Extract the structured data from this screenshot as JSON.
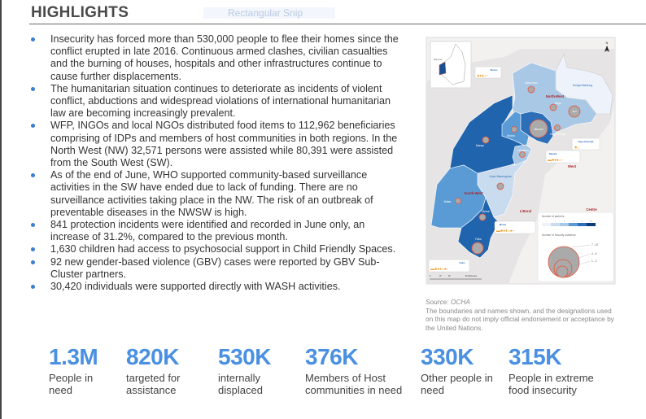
{
  "title": "HIGHLIGHTS",
  "bullets": [
    "Insecurity has forced more than 530,000 people to flee their homes since the conflict erupted in late 2016. Continuous armed clashes, civilian casualties and the burning of houses, hospitals and other infrastructures continue to cause further displacements.",
    "The humanitarian situation continues to deteriorate as incidents of violent conflict, abductions and widespread violations of international humanitarian law are becoming increasingly prevalent.",
    "WFP, INGOs and local NGOs distributed food items to 112,962 beneficiaries comprising of IDPs and members of host communities in both regions. In the North West (NW) 32,571 persons were assisted while 80,391 were assisted from the South West (SW).",
    "As of the end of June, WHO supported community-based surveillance activities in the SW have ended due to lack of funding. There are no surveillance activities taking place in the NW. The risk of an outbreak of preventable diseases in the NWSW is high.",
    "841 protection incidents were identified and recorded in June only, an increase of 31.2%, compared to the previous month.",
    "1,630 children had access to psychosocial support in Child Friendly Spaces.",
    "92 new gender-based violence (GBV) cases were reported by GBV Sub-Cluster partners.",
    "30,420 individuals were supported directly with WASH activities."
  ],
  "overlay_tooltip": "Rectangular Snip",
  "map": {
    "regions": {
      "nw": "North-West",
      "sw": "South-West",
      "west": "West",
      "littoral": "Littoral",
      "centre": "Centre"
    },
    "divisions": [
      "Menchum",
      "Donga-Mantung",
      "Boyo",
      "Bui",
      "Mezam",
      "Ngo-Ketunjia",
      "Momo",
      "Manyu",
      "Lebialem",
      "Kupe-Manenguba",
      "Ndian",
      "Meme",
      "Fako"
    ],
    "callouts": [
      "Momo",
      "Ngo-Ketunjia",
      "Mezam",
      "Meme",
      "Fako"
    ],
    "north_label": "N",
    "inset_label": "Map area",
    "scale_labels": [
      "0",
      "15",
      "30",
      "60 Kilometers"
    ],
    "legend": {
      "partners_title": "Number of partners",
      "partners_classes": [
        "1",
        "2",
        "3",
        "4",
        "5",
        "10+"
      ],
      "partners_colors": [
        "#eef3fb",
        "#c9dcef",
        "#a8c8e6",
        "#5b9bd5",
        "#2c6fb8",
        "#0d3c7a"
      ],
      "incidents_title": "Number of Security Incidence",
      "incidents_classes": [
        "7 - 10",
        "4 - 6",
        "1 - 3"
      ]
    },
    "colors": {
      "circle_fill": "#aaaaaa",
      "circle_stroke": "#e8533a",
      "icon": "#f0a23a",
      "region_label": "#a8222a",
      "division_label": "#2f6fb7"
    }
  },
  "source": {
    "label": "Source: OCHA",
    "disclaimer": "The boundaries and names shown, and the designations used on this map do not imply official endorsement or acceptance by the United Nations."
  },
  "stats": [
    {
      "value": "1.3M",
      "label": "People in need"
    },
    {
      "value": "820K",
      "label": "targeted for assistance"
    },
    {
      "value": "530K",
      "label": "internally displaced"
    },
    {
      "value": "376K",
      "label": "Members of Host communities in need"
    },
    {
      "value": "330K",
      "label": "Other people in need"
    },
    {
      "value": "315K",
      "label": "People in extreme food insecurity"
    }
  ],
  "accent": "#4a90e2"
}
